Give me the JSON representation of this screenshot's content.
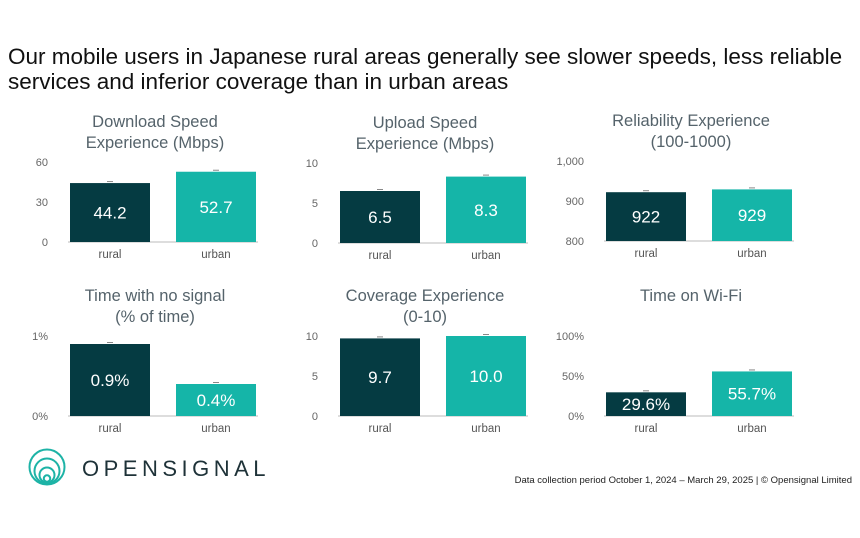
{
  "title": "Our mobile users in Japanese rural areas generally see slower speeds, less reliable services and inferior coverage than in urban areas",
  "colors": {
    "rural": "#053b42",
    "urban": "#15b5a8",
    "axis": "#bbbbbb",
    "title": "#55636b"
  },
  "chart_data": [
    {
      "type": "bar",
      "title": "Download Speed Experience (Mbps)",
      "title_lines": [
        "Download Speed",
        "Experience (Mbps)"
      ],
      "categories": [
        "rural",
        "urban"
      ],
      "values": [
        44.2,
        52.7
      ],
      "labels": [
        "44.2",
        "52.7"
      ],
      "ylim": [
        0,
        60
      ],
      "yticks": [
        0,
        30,
        60
      ],
      "ytick_labels": [
        "0",
        "30",
        "60"
      ]
    },
    {
      "type": "bar",
      "title": "Upload Speed Experience (Mbps)",
      "title_lines": [
        "Upload Speed",
        "Experience (Mbps)"
      ],
      "categories": [
        "rural",
        "urban"
      ],
      "values": [
        6.5,
        8.3
      ],
      "labels": [
        "6.5",
        "8.3"
      ],
      "ylim": [
        0,
        10
      ],
      "yticks": [
        0,
        5,
        10
      ],
      "ytick_labels": [
        "0",
        "5",
        "10"
      ]
    },
    {
      "type": "bar",
      "title": "Reliability Experience (100-1000)",
      "title_lines": [
        "Reliability Experience",
        "(100-1000)"
      ],
      "categories": [
        "rural",
        "urban"
      ],
      "values": [
        922,
        929
      ],
      "labels": [
        "922",
        "929"
      ],
      "ylim": [
        800,
        1000
      ],
      "yticks": [
        800,
        900,
        1000
      ],
      "ytick_labels": [
        "800",
        "900",
        "1,000"
      ]
    },
    {
      "type": "bar",
      "title": "Time with no signal (% of time)",
      "title_lines": [
        "Time with no signal",
        "(% of time)"
      ],
      "categories": [
        "rural",
        "urban"
      ],
      "values": [
        0.9,
        0.4
      ],
      "labels": [
        "0.9%",
        "0.4%"
      ],
      "ylim": [
        0,
        1
      ],
      "yticks": [
        0,
        1
      ],
      "ytick_labels": [
        "0%",
        "1%"
      ]
    },
    {
      "type": "bar",
      "title": "Coverage Experience (0-10)",
      "title_lines": [
        "Coverage Experience",
        "(0-10)"
      ],
      "categories": [
        "rural",
        "urban"
      ],
      "values": [
        9.7,
        10.0
      ],
      "labels": [
        "9.7",
        "10.0"
      ],
      "ylim": [
        0,
        10
      ],
      "yticks": [
        0,
        5,
        10
      ],
      "ytick_labels": [
        "0",
        "5",
        "10"
      ]
    },
    {
      "type": "bar",
      "title": "Time on Wi-Fi",
      "title_lines": [
        "Time on Wi-Fi"
      ],
      "categories": [
        "rural",
        "urban"
      ],
      "values": [
        29.6,
        55.7
      ],
      "labels": [
        "29.6%",
        "55.7%"
      ],
      "ylim": [
        0,
        100
      ],
      "yticks": [
        0,
        50,
        100
      ],
      "ytick_labels": [
        "0%",
        "50%",
        "100%"
      ]
    }
  ],
  "logo": {
    "text": "OPENSIGNAL"
  },
  "footnote": "Data collection period October 1, 2024 – March 29, 2025 | © Opensignal Limited"
}
